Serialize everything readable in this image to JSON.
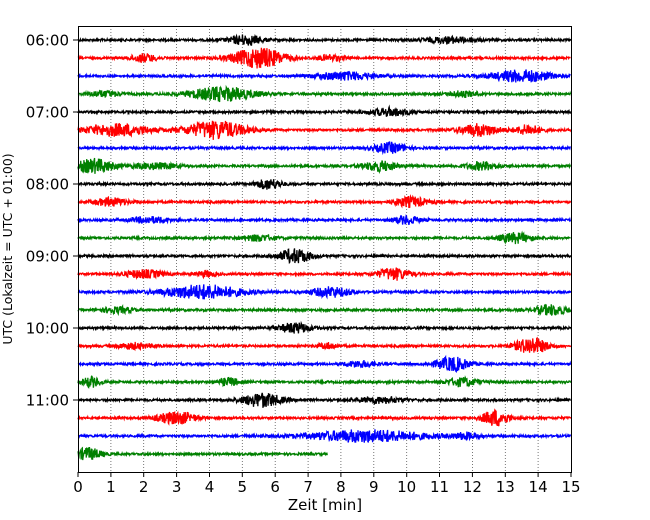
{
  "chart_data": {
    "type": "line",
    "subtype": "helicorder",
    "xlabel": "Zeit  [min]",
    "ylabel": "UTC (Lokalzeit = UTC + 01:00)",
    "xlim": [
      0,
      15
    ],
    "x_ticks": [
      0,
      1,
      2,
      3,
      4,
      5,
      6,
      7,
      8,
      9,
      10,
      11,
      12,
      13,
      14,
      15
    ],
    "y_tick_labels": [
      "06:00",
      "07:00",
      "08:00",
      "09:00",
      "10:00",
      "11:00"
    ],
    "grid": "vertical-dotted",
    "trace_minutes": 15,
    "trace_colors": [
      "#000000",
      "#ff0000",
      "#0000ff",
      "#008000"
    ],
    "traces": [
      {
        "start": "06:00",
        "end_min": 15,
        "events": [
          [
            5.1,
            0.5,
            5
          ],
          [
            11.3,
            0.8,
            3
          ]
        ]
      },
      {
        "start": "06:15",
        "end_min": 15,
        "events": [
          [
            2.0,
            0.4,
            4
          ],
          [
            5.5,
            0.8,
            10
          ],
          [
            7.7,
            0.4,
            3
          ]
        ]
      },
      {
        "start": "06:30",
        "end_min": 15,
        "events": [
          [
            8.1,
            0.9,
            4
          ],
          [
            13.5,
            0.9,
            6
          ]
        ]
      },
      {
        "start": "06:45",
        "end_min": 15,
        "events": [
          [
            0.8,
            0.5,
            3
          ],
          [
            4.4,
            1.0,
            7
          ],
          [
            11.7,
            0.4,
            3
          ]
        ]
      },
      {
        "start": "07:00",
        "end_min": 15,
        "events": [
          [
            9.5,
            0.6,
            4
          ]
        ]
      },
      {
        "start": "07:15",
        "end_min": 15,
        "events": [
          [
            1.2,
            1.0,
            6
          ],
          [
            4.2,
            0.9,
            9
          ],
          [
            12.2,
            0.6,
            6
          ],
          [
            13.7,
            0.4,
            5
          ]
        ]
      },
      {
        "start": "07:30",
        "end_min": 15,
        "events": [
          [
            9.5,
            0.5,
            5
          ]
        ]
      },
      {
        "start": "07:45",
        "end_min": 15,
        "events": [
          [
            0.5,
            0.6,
            7
          ],
          [
            2.3,
            0.7,
            3
          ],
          [
            9.2,
            0.5,
            5
          ],
          [
            12.3,
            0.5,
            4
          ]
        ]
      },
      {
        "start": "08:00",
        "end_min": 15,
        "events": [
          [
            5.8,
            0.4,
            5
          ]
        ]
      },
      {
        "start": "08:15",
        "end_min": 15,
        "events": [
          [
            1.0,
            0.5,
            4
          ],
          [
            10.1,
            0.5,
            5
          ]
        ]
      },
      {
        "start": "08:30",
        "end_min": 15,
        "events": [
          [
            2.2,
            0.6,
            3
          ],
          [
            10.0,
            0.4,
            4
          ]
        ]
      },
      {
        "start": "08:45",
        "end_min": 15,
        "events": [
          [
            5.5,
            0.5,
            3
          ],
          [
            13.3,
            0.5,
            5
          ]
        ]
      },
      {
        "start": "09:00",
        "end_min": 15,
        "events": [
          [
            6.6,
            0.5,
            7
          ]
        ]
      },
      {
        "start": "09:15",
        "end_min": 15,
        "events": [
          [
            2.0,
            0.6,
            4
          ],
          [
            3.9,
            0.3,
            3
          ],
          [
            9.6,
            0.5,
            6
          ]
        ]
      },
      {
        "start": "09:30",
        "end_min": 15,
        "events": [
          [
            3.8,
            1.2,
            7
          ],
          [
            7.7,
            0.6,
            5
          ]
        ]
      },
      {
        "start": "09:45",
        "end_min": 15,
        "events": [
          [
            1.2,
            0.5,
            3
          ],
          [
            14.4,
            0.5,
            5
          ]
        ]
      },
      {
        "start": "10:00",
        "end_min": 15,
        "events": [
          [
            6.6,
            0.5,
            5
          ]
        ]
      },
      {
        "start": "10:15",
        "end_min": 15,
        "events": [
          [
            1.7,
            0.5,
            3
          ],
          [
            7.6,
            0.3,
            3
          ],
          [
            13.8,
            0.5,
            8
          ]
        ]
      },
      {
        "start": "10:30",
        "end_min": 15,
        "events": [
          [
            8.6,
            0.5,
            3
          ],
          [
            11.4,
            0.5,
            7
          ]
        ]
      },
      {
        "start": "10:45",
        "end_min": 15,
        "events": [
          [
            0.4,
            0.3,
            5
          ],
          [
            4.6,
            0.3,
            4
          ],
          [
            11.7,
            0.5,
            4
          ]
        ]
      },
      {
        "start": "11:00",
        "end_min": 15,
        "events": [
          [
            5.6,
            0.6,
            7
          ],
          [
            9.2,
            0.7,
            3
          ]
        ]
      },
      {
        "start": "11:15",
        "end_min": 15,
        "events": [
          [
            3.0,
            0.6,
            6
          ],
          [
            12.7,
            0.4,
            8
          ]
        ]
      },
      {
        "start": "11:30",
        "end_min": 15,
        "events": [
          [
            8.8,
            1.8,
            6
          ],
          [
            11.8,
            0.4,
            3
          ]
        ]
      },
      {
        "start": "11:45",
        "end_min": 7.6,
        "events": [
          [
            0.3,
            0.4,
            6
          ]
        ]
      }
    ]
  }
}
